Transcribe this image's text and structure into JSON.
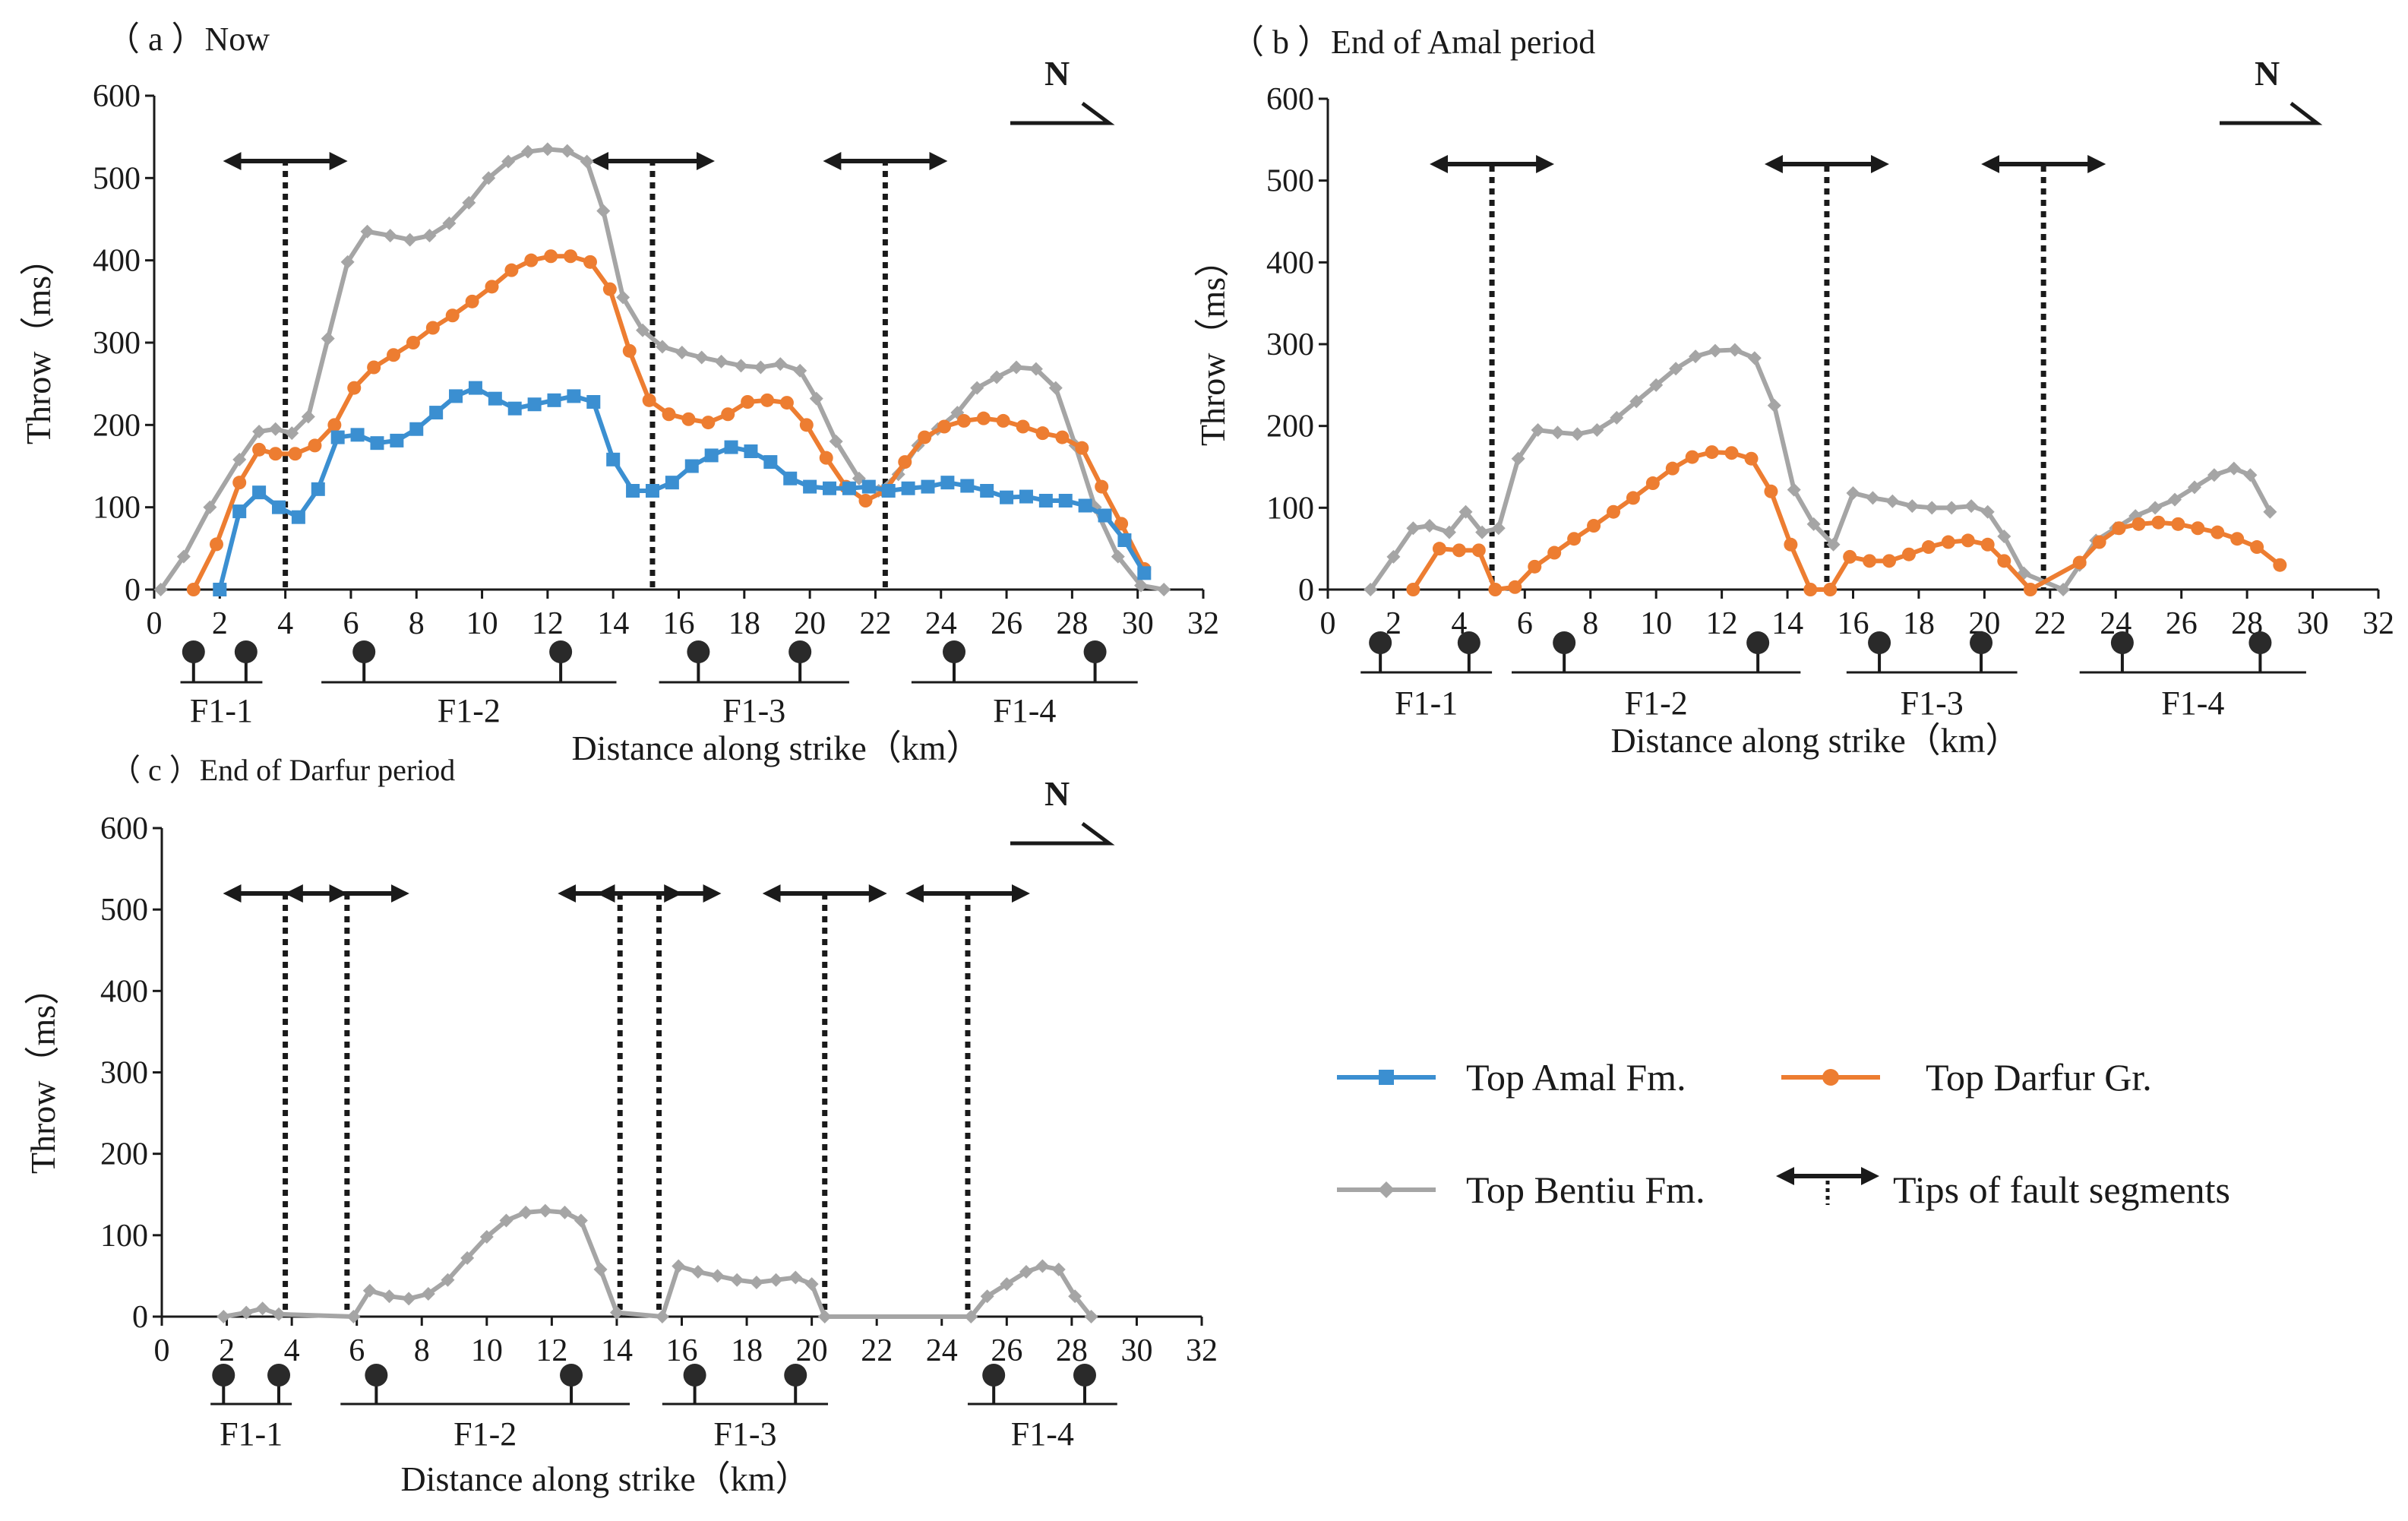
{
  "colors": {
    "amal": "#3b8fd1",
    "darfur": "#ed7d31",
    "bentiu": "#a5a5a5",
    "ink": "#1a1a1a"
  },
  "legend": {
    "amal": "Top Amal Fm.",
    "darfur": "Top Darfur Gr.",
    "bentiu": "Top Bentiu Fm.",
    "tips": "Tips of fault segments"
  },
  "chart_data": [
    {
      "id": "a",
      "type": "line",
      "title": "（ a ）Now",
      "north": "N",
      "xlabel": "Distance  along  strike（km）",
      "ylabel": "Throw（ms）",
      "xlim": [
        0,
        32
      ],
      "ylim": [
        0,
        600
      ],
      "xticks": [
        "0",
        "2",
        "4",
        "6",
        "8",
        "10",
        "12",
        "14",
        "16",
        "18",
        "20",
        "22",
        "24",
        "26",
        "28",
        "30",
        "32"
      ],
      "yticks": [
        "0",
        "100",
        "200",
        "300",
        "400",
        "500",
        "600"
      ],
      "series": [
        {
          "key": "bentiu",
          "name": "Top Bentiu Fm.",
          "marker": "diamond",
          "x": [
            0.2,
            0.9,
            1.7,
            2.6,
            3.2,
            3.7,
            4.2,
            4.7,
            5.3,
            5.9,
            6.5,
            7.2,
            7.8,
            8.4,
            9.0,
            9.6,
            10.2,
            10.8,
            11.4,
            12.0,
            12.6,
            13.2,
            13.7,
            14.3,
            14.9,
            15.5,
            16.1,
            16.7,
            17.3,
            17.9,
            18.5,
            19.1,
            19.7,
            20.2,
            20.8,
            21.5,
            22.1,
            22.7,
            23.3,
            23.9,
            24.5,
            25.1,
            25.7,
            26.3,
            26.9,
            27.5,
            28.1,
            28.7,
            29.4,
            30.1,
            30.8
          ],
          "y": [
            0,
            40,
            100,
            158,
            192,
            195,
            190,
            210,
            305,
            398,
            435,
            430,
            425,
            430,
            445,
            470,
            500,
            520,
            532,
            535,
            533,
            520,
            460,
            355,
            315,
            295,
            288,
            282,
            277,
            272,
            270,
            274,
            266,
            232,
            180,
            135,
            120,
            140,
            175,
            195,
            215,
            245,
            258,
            270,
            268,
            245,
            175,
            100,
            40,
            5,
            0
          ]
        },
        {
          "key": "darfur",
          "name": "Top Darfur Gr.",
          "marker": "circle",
          "x": [
            1.2,
            1.9,
            2.6,
            3.2,
            3.7,
            4.3,
            4.9,
            5.5,
            6.1,
            6.7,
            7.3,
            7.9,
            8.5,
            9.1,
            9.7,
            10.3,
            10.9,
            11.5,
            12.1,
            12.7,
            13.3,
            13.9,
            14.5,
            15.1,
            15.7,
            16.3,
            16.9,
            17.5,
            18.1,
            18.7,
            19.3,
            19.9,
            20.5,
            21.1,
            21.7,
            22.3,
            22.9,
            23.5,
            24.1,
            24.7,
            25.3,
            25.9,
            26.5,
            27.1,
            27.7,
            28.3,
            28.9,
            29.5,
            30.2
          ],
          "y": [
            0,
            55,
            130,
            170,
            165,
            165,
            175,
            200,
            245,
            270,
            285,
            300,
            318,
            333,
            350,
            368,
            388,
            400,
            405,
            405,
            398,
            365,
            290,
            230,
            213,
            207,
            203,
            213,
            228,
            230,
            227,
            200,
            160,
            125,
            108,
            120,
            155,
            185,
            198,
            205,
            208,
            205,
            198,
            190,
            185,
            172,
            125,
            80,
            25
          ]
        },
        {
          "key": "amal",
          "name": "Top Amal Fm.",
          "marker": "square",
          "x": [
            2.0,
            2.6,
            3.2,
            3.8,
            4.4,
            5.0,
            5.6,
            6.2,
            6.8,
            7.4,
            8.0,
            8.6,
            9.2,
            9.8,
            10.4,
            11.0,
            11.6,
            12.2,
            12.8,
            13.4,
            14.0,
            14.6,
            15.2,
            15.8,
            16.4,
            17.0,
            17.6,
            18.2,
            18.8,
            19.4,
            20.0,
            20.6,
            21.2,
            21.8,
            22.4,
            23.0,
            23.6,
            24.2,
            24.8,
            25.4,
            26.0,
            26.6,
            27.2,
            27.8,
            28.4,
            29.0,
            29.6,
            30.2
          ],
          "y": [
            0,
            95,
            118,
            100,
            88,
            122,
            185,
            188,
            178,
            181,
            195,
            215,
            235,
            245,
            232,
            220,
            225,
            230,
            235,
            228,
            158,
            120,
            120,
            130,
            150,
            163,
            173,
            168,
            155,
            135,
            125,
            123,
            123,
            125,
            120,
            123,
            125,
            130,
            126,
            120,
            112,
            113,
            108,
            108,
            102,
            90,
            60,
            20
          ]
        }
      ],
      "tips": [
        4.0,
        15.2,
        22.3
      ],
      "segments": [
        {
          "label": "F1-1",
          "from": 0.8,
          "to": 3.3,
          "pins": [
            1.2,
            2.8
          ]
        },
        {
          "label": "F1-2",
          "from": 5.1,
          "to": 14.1,
          "pins": [
            6.4,
            12.4
          ]
        },
        {
          "label": "F1-3",
          "from": 15.4,
          "to": 21.2,
          "pins": [
            16.6,
            19.7
          ]
        },
        {
          "label": "F1-4",
          "from": 23.1,
          "to": 30.0,
          "pins": [
            24.4,
            28.7
          ]
        }
      ]
    },
    {
      "id": "b",
      "type": "line",
      "title": "（ b ）End of Amal period",
      "north": "N",
      "xlabel": "Distance  along  strike（km）",
      "ylabel": "Throw（ms）",
      "xlim": [
        0,
        32
      ],
      "ylim": [
        0,
        600
      ],
      "xticks": [
        "0",
        "2",
        "4",
        "6",
        "8",
        "10",
        "12",
        "14",
        "16",
        "18",
        "20",
        "22",
        "24",
        "26",
        "28",
        "30",
        "32"
      ],
      "yticks": [
        "0",
        "100",
        "200",
        "300",
        "400",
        "500",
        "600"
      ],
      "series": [
        {
          "key": "bentiu",
          "name": "Top Bentiu Fm.",
          "marker": "diamond",
          "x": [
            1.3,
            2.0,
            2.6,
            3.1,
            3.7,
            4.2,
            4.7,
            5.2,
            5.8,
            6.4,
            7.0,
            7.6,
            8.2,
            8.8,
            9.4,
            10.0,
            10.6,
            11.2,
            11.8,
            12.4,
            13.0,
            13.6,
            14.2,
            14.8,
            15.4,
            16.0,
            16.6,
            17.2,
            17.8,
            18.4,
            19.0,
            19.6,
            20.1,
            20.6,
            21.2,
            22.4,
            22.9,
            23.4,
            24.0,
            24.6,
            25.2,
            25.8,
            26.4,
            27.0,
            27.6,
            28.1,
            28.7
          ],
          "y": [
            0,
            40,
            75,
            78,
            70,
            95,
            70,
            75,
            160,
            195,
            192,
            190,
            195,
            210,
            230,
            250,
            270,
            285,
            292,
            293,
            283,
            225,
            122,
            80,
            55,
            118,
            112,
            108,
            102,
            100,
            100,
            102,
            95,
            65,
            20,
            0,
            30,
            60,
            75,
            90,
            100,
            110,
            125,
            140,
            148,
            140,
            95
          ]
        },
        {
          "key": "darfur",
          "name": "Top Darfur Gr.",
          "marker": "circle",
          "x": [
            2.6,
            3.4,
            4.0,
            4.6,
            5.1,
            5.7,
            6.3,
            6.9,
            7.5,
            8.1,
            8.7,
            9.3,
            9.9,
            10.5,
            11.1,
            11.7,
            12.3,
            12.9,
            13.5,
            14.1,
            14.7,
            15.3,
            15.9,
            16.5,
            17.1,
            17.7,
            18.3,
            18.9,
            19.5,
            20.1,
            20.6,
            21.4,
            22.9,
            23.5,
            24.1,
            24.7,
            25.3,
            25.9,
            26.5,
            27.1,
            27.7,
            28.3,
            29.0
          ],
          "y": [
            0,
            50,
            48,
            48,
            0,
            3,
            28,
            45,
            62,
            78,
            95,
            112,
            130,
            148,
            162,
            168,
            167,
            160,
            120,
            55,
            0,
            0,
            40,
            35,
            35,
            43,
            52,
            58,
            60,
            55,
            35,
            0,
            33,
            58,
            75,
            80,
            82,
            80,
            75,
            70,
            62,
            52,
            30
          ]
        }
      ],
      "tips": [
        5.0,
        15.2,
        21.8
      ],
      "segments": [
        {
          "label": "F1-1",
          "from": 1.0,
          "to": 5.0,
          "pins": [
            1.6,
            4.3
          ]
        },
        {
          "label": "F1-2",
          "from": 5.6,
          "to": 14.4,
          "pins": [
            7.2,
            13.1
          ]
        },
        {
          "label": "F1-3",
          "from": 15.8,
          "to": 21.0,
          "pins": [
            16.8,
            19.9
          ]
        },
        {
          "label": "F1-4",
          "from": 22.9,
          "to": 29.8,
          "pins": [
            24.2,
            28.4
          ]
        }
      ]
    },
    {
      "id": "c",
      "type": "line",
      "title": "（ c ）End of Darfur period",
      "north": "N",
      "xlabel": "Distance along strike（km）",
      "ylabel": "Throw（ms）",
      "xlim": [
        0,
        32
      ],
      "ylim": [
        0,
        600
      ],
      "xticks": [
        "0",
        "2",
        "4",
        "6",
        "8",
        "10",
        "12",
        "14",
        "16",
        "18",
        "20",
        "22",
        "24",
        "26",
        "28",
        "30",
        "32"
      ],
      "yticks": [
        "0",
        "100",
        "200",
        "300",
        "400",
        "500",
        "600"
      ],
      "series": [
        {
          "key": "bentiu",
          "name": "Top Bentiu Fm.",
          "marker": "diamond",
          "x": [
            1.9,
            2.6,
            3.1,
            3.6,
            5.9,
            6.4,
            7.0,
            7.6,
            8.2,
            8.8,
            9.4,
            10.0,
            10.6,
            11.2,
            11.8,
            12.4,
            12.9,
            13.5,
            14.0,
            15.4,
            15.9,
            16.5,
            17.1,
            17.7,
            18.3,
            18.9,
            19.5,
            20.0,
            20.4,
            24.9,
            25.4,
            26.0,
            26.6,
            27.1,
            27.6,
            28.1,
            28.6
          ],
          "y": [
            0,
            5,
            10,
            3,
            0,
            32,
            25,
            22,
            28,
            45,
            72,
            98,
            118,
            128,
            130,
            128,
            118,
            58,
            5,
            0,
            62,
            55,
            50,
            45,
            42,
            45,
            48,
            40,
            0,
            0,
            25,
            40,
            55,
            62,
            58,
            25,
            0
          ]
        }
      ],
      "tips": [
        3.8,
        5.7,
        14.1,
        15.3,
        20.4,
        24.8
      ],
      "segments": [
        {
          "label": "F1-1",
          "from": 1.5,
          "to": 4.0,
          "pins": [
            1.9,
            3.6
          ]
        },
        {
          "label": "F1-2",
          "from": 5.5,
          "to": 14.4,
          "pins": [
            6.6,
            12.6
          ]
        },
        {
          "label": "F1-3",
          "from": 15.4,
          "to": 20.5,
          "pins": [
            16.4,
            19.5
          ]
        },
        {
          "label": "F1-4",
          "from": 24.8,
          "to": 29.4,
          "pins": [
            25.6,
            28.4
          ]
        }
      ]
    }
  ]
}
